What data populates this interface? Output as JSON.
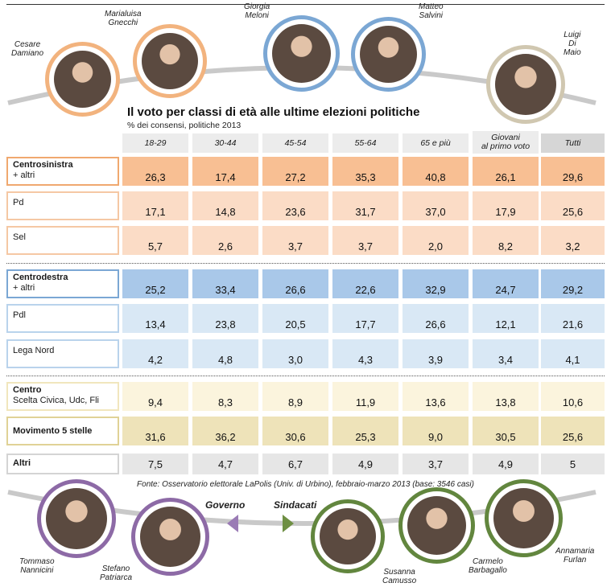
{
  "title": "Il voto per classi di età alle ultime elezioni politiche",
  "subtitle": "% dei consensi, politiche 2013",
  "source": "Fonte: Osservatorio elettorale LaPolis (Univ. di Urbino), febbraio-marzo 2013 (base: 3546 casi)",
  "colors": {
    "centrosinistra_ring": "#f2b37e",
    "centrodestra_ring": "#7ba7d4",
    "grey_ring": "#d0c7b0",
    "purple_ring": "#8d6aa6",
    "green_ring": "#62863e"
  },
  "top_people": [
    {
      "name": "Cesare Damiano",
      "line1": "Cesare",
      "line2": "Damiano",
      "icon": "portrait-icon"
    },
    {
      "name": "Marialuisa Gnecchi",
      "line1": "Marialuisa",
      "line2": "Gnecchi",
      "icon": "portrait-icon"
    },
    {
      "name": "Giorgia Meloni",
      "line1": "Giorgia",
      "line2": "Meloni",
      "icon": "portrait-icon"
    },
    {
      "name": "Matteo Salvini",
      "line1": "Matteo",
      "line2": "Salvini",
      "icon": "portrait-icon"
    },
    {
      "name": "Luigi Di Maio",
      "line1": "Luigi",
      "line2": "Di Maio",
      "icon": "portrait-icon"
    }
  ],
  "bottom_people": [
    {
      "line1": "Tommaso",
      "line2": "Nannicini",
      "icon": "portrait-icon"
    },
    {
      "line1": "Stefano",
      "line2": "Patriarca",
      "icon": "portrait-icon"
    },
    {
      "line1": "Susanna",
      "line2": "Camusso",
      "icon": "portrait-icon"
    },
    {
      "line1": "Carmelo",
      "line2": "Barbagallo",
      "icon": "portrait-icon"
    },
    {
      "line1": "Annamaria",
      "line2": "Furlan",
      "icon": "portrait-icon"
    }
  ],
  "labels": {
    "governo": "Governo",
    "sindacati": "Sindacati"
  },
  "chart_data": {
    "type": "table",
    "title": "Il voto per classi di età alle ultime elezioni politiche",
    "subtitle": "% dei consensi, politiche 2013",
    "columns": [
      {
        "l1": "18-29",
        "l2": ""
      },
      {
        "l1": "30-44",
        "l2": ""
      },
      {
        "l1": "45-54",
        "l2": ""
      },
      {
        "l1": "55-64",
        "l2": ""
      },
      {
        "l1": "65 e più",
        "l2": ""
      },
      {
        "l1": "Giovani",
        "l2": "al primo voto"
      },
      {
        "l1": "Tutti",
        "l2": ""
      }
    ],
    "rows": [
      {
        "l1": "Centrosinistra",
        "l2": "+ altri",
        "bold": true,
        "values": [
          "26,3",
          "17,4",
          "27,2",
          "35,3",
          "40,8",
          "26,1",
          "29,6"
        ],
        "fill": "#f8bf93",
        "border": "#f0a86f"
      },
      {
        "l1": "Pd",
        "l2": "",
        "bold": false,
        "values": [
          "17,1",
          "14,8",
          "23,6",
          "31,7",
          "37,0",
          "17,9",
          "25,6"
        ],
        "fill": "#fbdcc6",
        "border": "#f5c8a4"
      },
      {
        "l1": "Sel",
        "l2": "",
        "bold": false,
        "values": [
          "5,7",
          "2,6",
          "3,7",
          "3,7",
          "2,0",
          "8,2",
          "3,2"
        ],
        "fill": "#fbdcc6",
        "border": "#f5c8a4"
      },
      {
        "l1": "Centrodestra",
        "l2": "+ altri",
        "bold": true,
        "values": [
          "25,2",
          "33,4",
          "26,6",
          "22,6",
          "32,9",
          "24,7",
          "29,2"
        ],
        "fill": "#a9c8e9",
        "border": "#7ba7d4"
      },
      {
        "l1": "Pdl",
        "l2": "",
        "bold": false,
        "values": [
          "13,4",
          "23,8",
          "20,5",
          "17,7",
          "26,6",
          "12,1",
          "21,6"
        ],
        "fill": "#d9e8f5",
        "border": "#b9d3ec"
      },
      {
        "l1": "Lega Nord",
        "l2": "",
        "bold": false,
        "values": [
          "4,2",
          "4,8",
          "3,0",
          "4,3",
          "3,9",
          "3,4",
          "4,1"
        ],
        "fill": "#d9e8f5",
        "border": "#b9d3ec"
      },
      {
        "l1": "Centro",
        "l2": "Scelta Civica, Udc, Fli",
        "bold": true,
        "values": [
          "9,4",
          "8,3",
          "8,9",
          "11,9",
          "13,6",
          "13,8",
          "10,6"
        ],
        "fill": "#fbf4dd",
        "border": "#f1e6bd"
      },
      {
        "l1": "Movimento 5 stelle",
        "l2": "",
        "bold": true,
        "values": [
          "31,6",
          "36,2",
          "30,6",
          "25,3",
          "9,0",
          "30,5",
          "25,6"
        ],
        "fill": "#eee3b9",
        "border": "#e0d296"
      },
      {
        "l1": "Altri",
        "l2": "",
        "bold": true,
        "values": [
          "7,5",
          "4,7",
          "6,7",
          "4,9",
          "3,7",
          "4,9",
          "5"
        ],
        "fill": "#e6e6e6",
        "border": "#d4d4d4"
      }
    ]
  }
}
